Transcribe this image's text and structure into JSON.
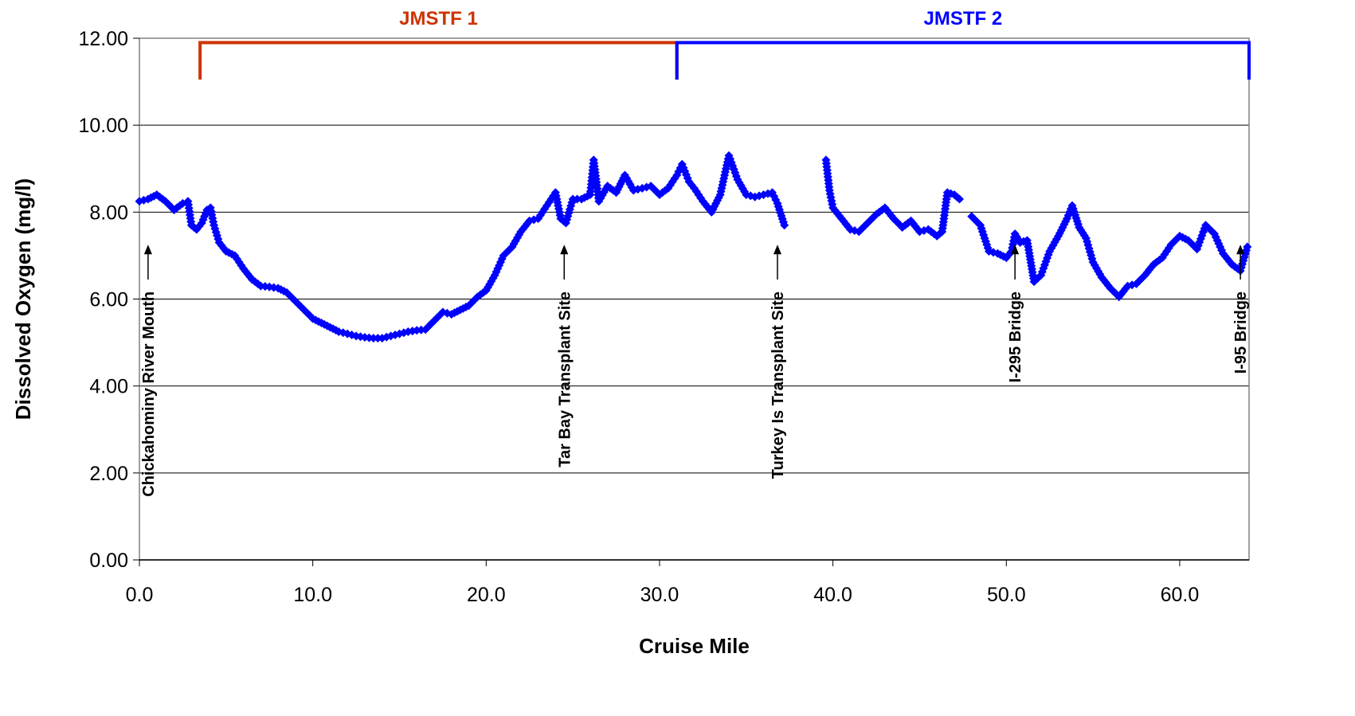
{
  "chart_data": {
    "type": "scatter",
    "title": "",
    "xlabel": "Cruise Mile",
    "ylabel": "Dissolved Oxygen (mg/l)",
    "xlim": [
      0,
      64
    ],
    "ylim": [
      0,
      12
    ],
    "x_ticks": [
      0,
      10,
      20,
      30,
      40,
      50,
      60
    ],
    "x_tick_labels": [
      "0.0",
      "10.0",
      "20.0",
      "30.0",
      "40.0",
      "50.0",
      "60.0"
    ],
    "y_ticks": [
      0,
      2,
      4,
      6,
      8,
      10,
      12
    ],
    "y_tick_labels": [
      "0.00",
      "2.00",
      "4.00",
      "6.00",
      "8.00",
      "10.00",
      "12.00"
    ],
    "grid": "horizontal",
    "marker_color": "#0000FF",
    "series": [
      {
        "points": [
          [
            0.0,
            8.25
          ],
          [
            0.5,
            8.3
          ],
          [
            1.0,
            8.4
          ],
          [
            1.5,
            8.25
          ],
          [
            2.0,
            8.05
          ],
          [
            2.5,
            8.2
          ],
          [
            2.8,
            8.25
          ],
          [
            3.0,
            7.7
          ],
          [
            3.3,
            7.6
          ],
          [
            3.6,
            7.75
          ],
          [
            3.9,
            8.05
          ],
          [
            4.1,
            8.1
          ],
          [
            4.3,
            7.7
          ],
          [
            4.6,
            7.3
          ],
          [
            5.0,
            7.1
          ],
          [
            5.5,
            7.0
          ],
          [
            6.0,
            6.7
          ],
          [
            6.5,
            6.45
          ],
          [
            7.0,
            6.3
          ],
          [
            7.5,
            6.28
          ],
          [
            8.0,
            6.25
          ],
          [
            8.5,
            6.15
          ],
          [
            9.0,
            5.95
          ],
          [
            9.5,
            5.75
          ],
          [
            10.0,
            5.55
          ],
          [
            10.5,
            5.45
          ],
          [
            11.0,
            5.35
          ],
          [
            11.5,
            5.25
          ],
          [
            12.0,
            5.2
          ],
          [
            12.5,
            5.15
          ],
          [
            13.0,
            5.12
          ],
          [
            13.5,
            5.1
          ],
          [
            14.0,
            5.1
          ],
          [
            14.5,
            5.15
          ],
          [
            15.0,
            5.2
          ],
          [
            15.5,
            5.25
          ],
          [
            16.0,
            5.28
          ],
          [
            16.5,
            5.3
          ],
          [
            17.0,
            5.5
          ],
          [
            17.5,
            5.7
          ],
          [
            18.0,
            5.65
          ],
          [
            18.5,
            5.75
          ],
          [
            19.0,
            5.85
          ],
          [
            19.5,
            6.05
          ],
          [
            20.0,
            6.2
          ],
          [
            20.5,
            6.55
          ],
          [
            21.0,
            7.0
          ],
          [
            21.5,
            7.2
          ],
          [
            22.0,
            7.55
          ],
          [
            22.5,
            7.8
          ],
          [
            23.0,
            7.85
          ],
          [
            23.5,
            8.15
          ],
          [
            24.0,
            8.45
          ],
          [
            24.3,
            7.85
          ],
          [
            24.6,
            7.75
          ],
          [
            25.0,
            8.3
          ],
          [
            25.5,
            8.3
          ],
          [
            26.0,
            8.4
          ],
          [
            26.2,
            9.2
          ],
          [
            26.5,
            8.25
          ],
          [
            27.0,
            8.6
          ],
          [
            27.5,
            8.45
          ],
          [
            28.0,
            8.85
          ],
          [
            28.5,
            8.5
          ],
          [
            29.0,
            8.55
          ],
          [
            29.5,
            8.6
          ],
          [
            30.0,
            8.4
          ],
          [
            30.5,
            8.55
          ],
          [
            31.0,
            8.85
          ],
          [
            31.3,
            9.1
          ],
          [
            31.7,
            8.7
          ],
          [
            32.0,
            8.55
          ],
          [
            32.5,
            8.25
          ],
          [
            33.0,
            8.0
          ],
          [
            33.5,
            8.4
          ],
          [
            34.0,
            9.3
          ],
          [
            34.5,
            8.75
          ],
          [
            35.0,
            8.4
          ],
          [
            35.5,
            8.35
          ],
          [
            36.0,
            8.4
          ],
          [
            36.5,
            8.45
          ],
          [
            36.8,
            8.2
          ],
          [
            37.2,
            7.7
          ],
          [
            39.6,
            9.2
          ],
          [
            39.8,
            8.5
          ],
          [
            40.0,
            8.1
          ],
          [
            40.5,
            7.85
          ],
          [
            41.0,
            7.6
          ],
          [
            41.5,
            7.55
          ],
          [
            42.0,
            7.75
          ],
          [
            42.5,
            7.95
          ],
          [
            43.0,
            8.1
          ],
          [
            43.5,
            7.85
          ],
          [
            44.0,
            7.65
          ],
          [
            44.5,
            7.8
          ],
          [
            45.0,
            7.55
          ],
          [
            45.5,
            7.6
          ],
          [
            46.0,
            7.45
          ],
          [
            46.3,
            7.55
          ],
          [
            46.6,
            8.45
          ],
          [
            47.0,
            8.4
          ],
          [
            47.3,
            8.3
          ],
          [
            48.0,
            7.9
          ],
          [
            48.5,
            7.7
          ],
          [
            49.0,
            7.1
          ],
          [
            49.5,
            7.05
          ],
          [
            50.0,
            6.95
          ],
          [
            50.3,
            7.1
          ],
          [
            50.5,
            7.5
          ],
          [
            50.8,
            7.3
          ],
          [
            51.2,
            7.35
          ],
          [
            51.6,
            6.4
          ],
          [
            52.0,
            6.55
          ],
          [
            52.5,
            7.1
          ],
          [
            53.0,
            7.45
          ],
          [
            53.5,
            7.85
          ],
          [
            53.8,
            8.15
          ],
          [
            54.2,
            7.65
          ],
          [
            54.6,
            7.4
          ],
          [
            55.0,
            6.85
          ],
          [
            55.5,
            6.5
          ],
          [
            56.0,
            6.25
          ],
          [
            56.5,
            6.05
          ],
          [
            57.0,
            6.3
          ],
          [
            57.5,
            6.35
          ],
          [
            58.0,
            6.55
          ],
          [
            58.5,
            6.8
          ],
          [
            59.0,
            6.95
          ],
          [
            59.5,
            7.25
          ],
          [
            60.0,
            7.45
          ],
          [
            60.5,
            7.35
          ],
          [
            61.0,
            7.15
          ],
          [
            61.5,
            7.7
          ],
          [
            62.0,
            7.5
          ],
          [
            62.5,
            7.05
          ],
          [
            63.0,
            6.8
          ],
          [
            63.5,
            6.65
          ],
          [
            63.9,
            7.2
          ]
        ]
      }
    ],
    "annotations": [
      {
        "text": "Chickahominy River Mouth",
        "x": 0.5
      },
      {
        "text": "Tar Bay Transplant Site",
        "x": 24.5
      },
      {
        "text": "Turkey Is Transplant Site",
        "x": 36.8
      },
      {
        "text": "I-295 Bridge",
        "x": 50.5
      },
      {
        "text": "I-95 Bridge",
        "x": 63.5
      }
    ],
    "brackets": [
      {
        "label": "JMSTF 1",
        "x_start": 3.5,
        "x_end": 31.0,
        "color": "#CC3300"
      },
      {
        "label": "JMSTF 2",
        "x_start": 31.0,
        "x_end": 64.0,
        "color": "#0000FF"
      }
    ]
  }
}
